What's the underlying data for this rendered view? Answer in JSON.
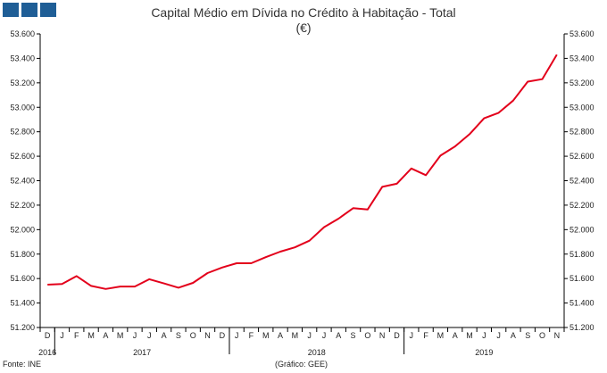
{
  "colors": {
    "logo": "#1f5e96",
    "line": "#e3001b",
    "axis": "#000000",
    "text": "#333333"
  },
  "chart_data": {
    "type": "line",
    "title": "Capital Médio em Dívida no Crédito à Habitação - Total",
    "subtitle": "(€)",
    "ylim": [
      51200,
      53600
    ],
    "y_ticks": [
      51200,
      51400,
      51600,
      51800,
      52000,
      52200,
      52400,
      52600,
      52800,
      53000,
      53200,
      53400,
      53600
    ],
    "y_tick_labels": [
      "51.200",
      "51.400",
      "51.600",
      "51.800",
      "52.000",
      "52.200",
      "52.400",
      "52.600",
      "52.800",
      "53.000",
      "53.200",
      "53.400",
      "53.600"
    ],
    "secondary_y_axis": true,
    "grid": false,
    "x": [
      "D",
      "J",
      "F",
      "M",
      "A",
      "M",
      "J",
      "J",
      "A",
      "S",
      "O",
      "N",
      "D",
      "J",
      "F",
      "M",
      "A",
      "M",
      "J",
      "J",
      "A",
      "S",
      "O",
      "N",
      "D",
      "J",
      "F",
      "M",
      "A",
      "M",
      "J",
      "J",
      "A",
      "S",
      "O",
      "N"
    ],
    "years": [
      "2016",
      "2017",
      "2018",
      "2019"
    ],
    "series": [
      {
        "values": [
          51550,
          51555,
          51620,
          51540,
          51515,
          51535,
          51535,
          51595,
          51560,
          51525,
          51565,
          51645,
          51690,
          51725,
          51725,
          51775,
          51820,
          51855,
          51910,
          52020,
          52090,
          52175,
          52165,
          52350,
          52375,
          52500,
          52445,
          52605,
          52680,
          52780,
          52910,
          52955,
          53055,
          53210,
          53230,
          53430
        ]
      }
    ]
  },
  "footer": {
    "source": "Fonte: INE",
    "credit": "(Gráfico: GEE)"
  }
}
